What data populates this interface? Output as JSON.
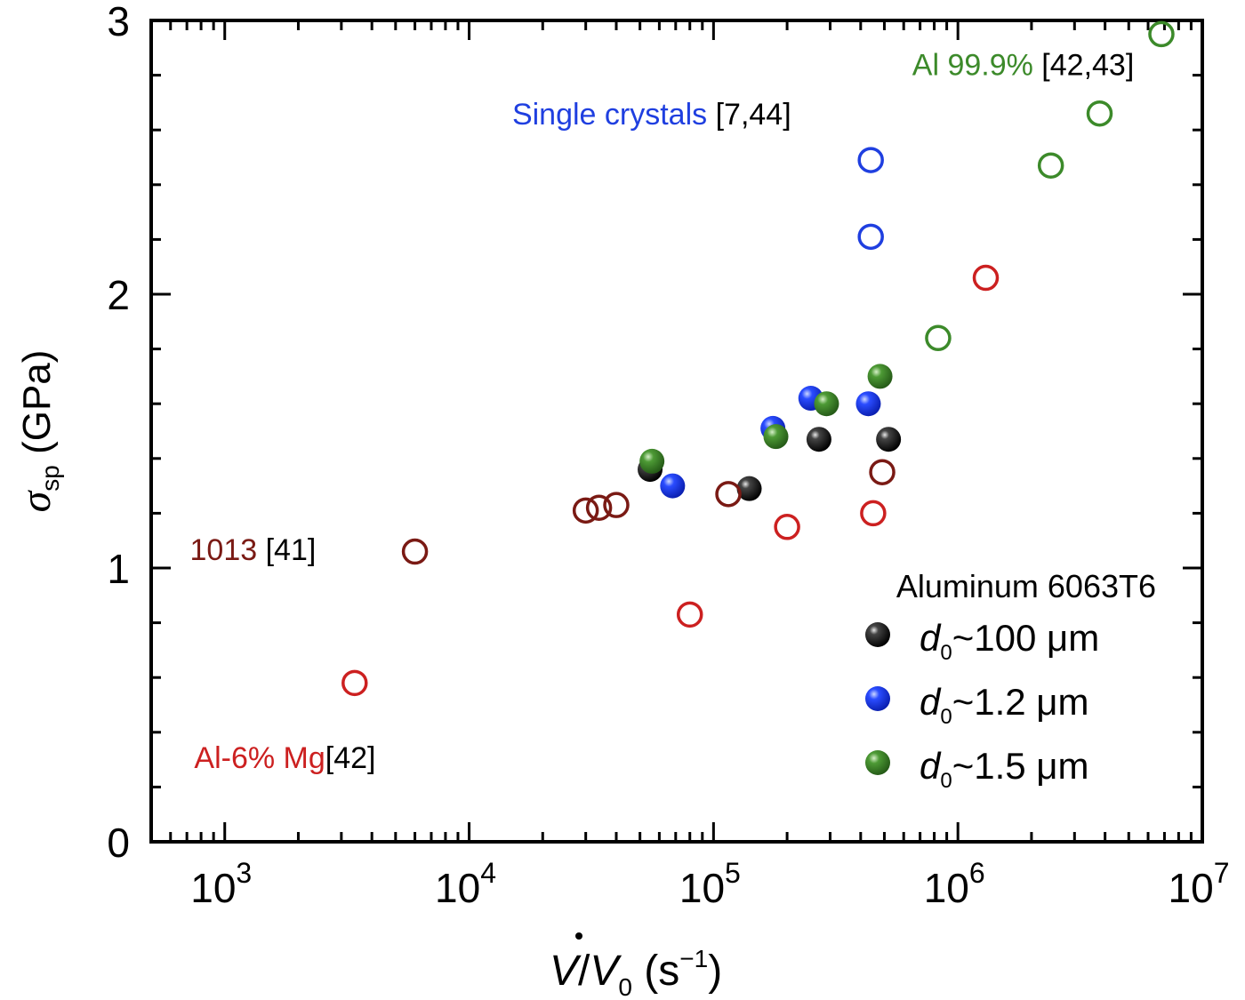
{
  "chart_data": {
    "type": "scatter",
    "x_scale": "log",
    "xlim": [
      500,
      10000000
    ],
    "ylim": [
      0,
      3
    ],
    "xlabel": "V̇/V₀ (s⁻¹)",
    "ylabel": "σsp (GPa)",
    "x_ticks": [
      {
        "value": 1000,
        "base": "10",
        "exp": "3"
      },
      {
        "value": 10000,
        "base": "10",
        "exp": "4"
      },
      {
        "value": 100000,
        "base": "10",
        "exp": "5"
      },
      {
        "value": 1000000,
        "base": "10",
        "exp": "6"
      },
      {
        "value": 10000000,
        "base": "10",
        "exp": "7"
      }
    ],
    "y_ticks": [
      {
        "value": 0,
        "label": "0"
      },
      {
        "value": 1,
        "label": "1"
      },
      {
        "value": 2,
        "label": "2"
      },
      {
        "value": 3,
        "label": "3"
      }
    ],
    "grid": false,
    "legend": {
      "title": "Aluminum 6063T6",
      "position": "bottom-right",
      "items": [
        {
          "var": "d",
          "sub": "0",
          "text": "~100 μm",
          "color": "#111111"
        },
        {
          "var": "d",
          "sub": "0",
          "text": "~1.2 μm",
          "color": "#1f3fe0"
        },
        {
          "var": "d",
          "sub": "0",
          "text": "~1.5 μm",
          "color": "#3c8a2a"
        }
      ]
    },
    "series": [
      {
        "name": "d0~100 μm",
        "marker": "filled",
        "color": "#111111",
        "points": [
          [
            55000,
            1.36
          ],
          [
            140000,
            1.29
          ],
          [
            270000,
            1.47
          ],
          [
            520000,
            1.47
          ]
        ]
      },
      {
        "name": "d0~1.2 μm",
        "marker": "filled",
        "color": "#1f3fe0",
        "points": [
          [
            68000,
            1.3
          ],
          [
            175000,
            1.51
          ],
          [
            250000,
            1.62
          ],
          [
            430000,
            1.6
          ]
        ]
      },
      {
        "name": "d0~1.5 μm",
        "marker": "filled",
        "color": "#3c8a2a",
        "points": [
          [
            56000,
            1.39
          ],
          [
            180000,
            1.48
          ],
          [
            290000,
            1.6
          ],
          [
            480000,
            1.7
          ]
        ]
      },
      {
        "name": "Single crystals [7,44]",
        "marker": "open",
        "color": "#1f3fe0",
        "points": [
          [
            440000,
            2.49
          ],
          [
            440000,
            2.21
          ]
        ]
      },
      {
        "name": "Al 99.9% [42,43]",
        "marker": "open",
        "color": "#3c8a2a",
        "points": [
          [
            830000,
            1.84
          ],
          [
            2400000,
            2.47
          ],
          [
            3800000,
            2.66
          ],
          [
            6800000,
            2.95
          ]
        ]
      },
      {
        "name": "Al-6% Mg[42]",
        "marker": "open",
        "color": "#cc2020",
        "points": [
          [
            3400,
            0.58
          ],
          [
            80000,
            0.83
          ],
          [
            200000,
            1.15
          ],
          [
            450000,
            1.2
          ],
          [
            1300000,
            2.06
          ]
        ]
      },
      {
        "name": "1013 [41]",
        "marker": "open",
        "color": "#7a1a14",
        "points": [
          [
            6000,
            1.06
          ],
          [
            30000,
            1.21
          ],
          [
            34000,
            1.22
          ],
          [
            40000,
            1.23
          ],
          [
            115000,
            1.27
          ],
          [
            490000,
            1.35
          ]
        ]
      }
    ],
    "annotations": [
      {
        "id": "single",
        "colored": "Single crystals",
        "plain": " [7,44]",
        "color": "#1f3fe0",
        "anchor": [
          15000,
          2.62
        ]
      },
      {
        "id": "al999",
        "colored": "Al 99.9%",
        "plain": " [42,43]",
        "color": "#3c8a2a",
        "anchor": [
          650000,
          2.8
        ]
      },
      {
        "id": "m1013",
        "colored": "1013",
        "plain": " [41]",
        "color": "#7a1a14",
        "anchor": [
          720,
          1.03
        ]
      },
      {
        "id": "mg",
        "colored": "Al-6% Mg",
        "plain": "[42]",
        "color": "#cc2020",
        "anchor": [
          750,
          0.27
        ]
      }
    ]
  }
}
